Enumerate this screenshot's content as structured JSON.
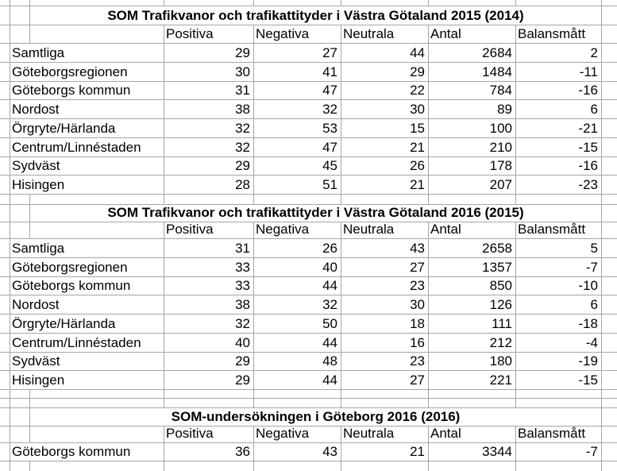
{
  "sheet": {
    "colors": {
      "gridline": "#a6a6a6",
      "text": "#000000",
      "background": "#ffffff"
    },
    "tables": [
      {
        "title": "SOM Trafikvanor och trafikattityder i Västra Götaland 2015 (2014)",
        "columns": [
          "Positiva",
          "Negativa",
          "Neutrala",
          "Antal",
          "Balansmått"
        ],
        "rows": [
          {
            "label": "Samtliga",
            "values": [
              "29",
              "27",
              "44",
              "2684",
              "2"
            ]
          },
          {
            "label": "Göteborgsregionen",
            "values": [
              "30",
              "41",
              "29",
              "1484",
              "-11"
            ]
          },
          {
            "label": "Göteborgs kommun",
            "values": [
              "31",
              "47",
              "22",
              "784",
              "-16"
            ]
          },
          {
            "label": "Nordost",
            "values": [
              "38",
              "32",
              "30",
              "89",
              "6"
            ]
          },
          {
            "label": "Örgryte/Härlanda",
            "values": [
              "32",
              "53",
              "15",
              "100",
              "-21"
            ]
          },
          {
            "label": "Centrum/Linnéstaden",
            "values": [
              "32",
              "47",
              "21",
              "210",
              "-15"
            ]
          },
          {
            "label": "Sydväst",
            "values": [
              "29",
              "45",
              "26",
              "178",
              "-16"
            ]
          },
          {
            "label": "Hisingen",
            "values": [
              "28",
              "51",
              "21",
              "207",
              "-23"
            ]
          }
        ]
      },
      {
        "title": "SOM Trafikvanor och trafikattityder i Västra Götaland 2016 (2015)",
        "columns": [
          "Positiva",
          "Negativa",
          "Neutrala",
          "Antal",
          "Balansmått"
        ],
        "rows": [
          {
            "label": "Samtliga",
            "values": [
              "31",
              "26",
              "43",
              "2658",
              "5"
            ]
          },
          {
            "label": "Göteborgsregionen",
            "values": [
              "33",
              "40",
              "27",
              "1357",
              "-7"
            ]
          },
          {
            "label": "Göteborgs kommun",
            "values": [
              "33",
              "44",
              "23",
              "850",
              "-10"
            ]
          },
          {
            "label": "Nordost",
            "values": [
              "38",
              "32",
              "30",
              "126",
              "6"
            ]
          },
          {
            "label": "Örgryte/Härlanda",
            "values": [
              "32",
              "50",
              "18",
              "111",
              "-18"
            ]
          },
          {
            "label": "Centrum/Linnéstaden",
            "values": [
              "40",
              "44",
              "16",
              "212",
              "-4"
            ]
          },
          {
            "label": "Sydväst",
            "values": [
              "29",
              "48",
              "23",
              "180",
              "-19"
            ]
          },
          {
            "label": "Hisingen",
            "values": [
              "29",
              "44",
              "27",
              "221",
              "-15"
            ]
          }
        ]
      },
      {
        "title": "SOM-undersökningen i Göteborg 2016 (2016)",
        "columns": [
          "Positiva",
          "Negativa",
          "Neutrala",
          "Antal",
          "Balansmått"
        ],
        "rows": [
          {
            "label": "Göteborgs kommun",
            "values": [
              "36",
              "43",
              "21",
              "3344",
              "-7"
            ]
          }
        ]
      }
    ]
  }
}
